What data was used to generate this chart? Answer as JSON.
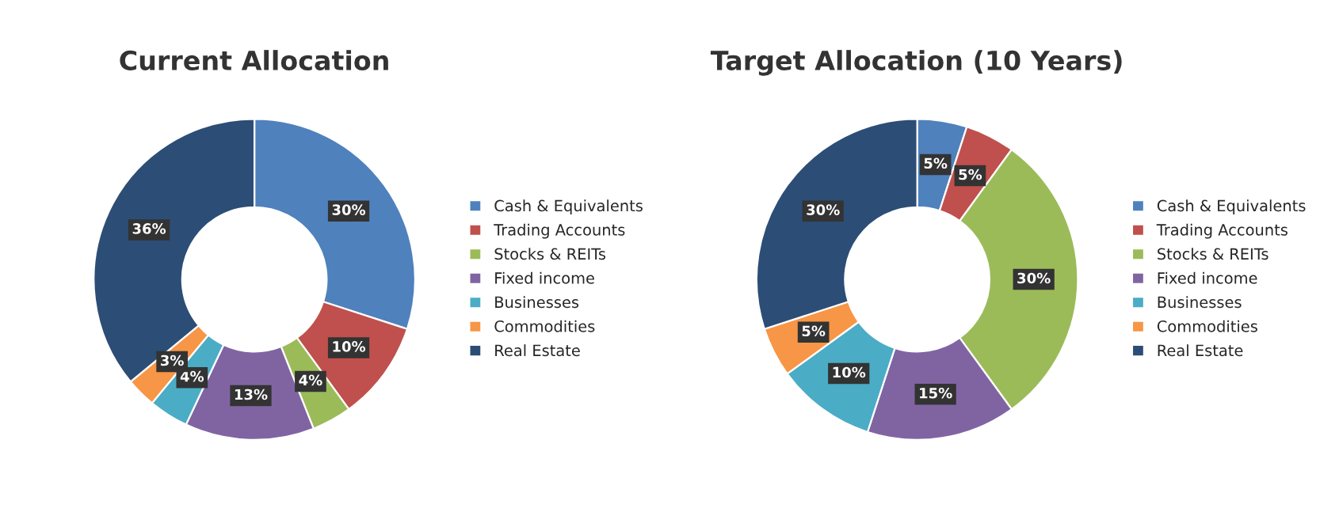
{
  "chart_data": [
    {
      "type": "donut",
      "title": "Current Allocation",
      "categories": [
        "Cash & Equivalents",
        "Trading Accounts",
        "Stocks & REITs",
        "Fixed income",
        "Businesses",
        "Commodities",
        "Real Estate"
      ],
      "values": [
        30,
        10,
        4,
        13,
        4,
        3,
        36
      ],
      "colors": [
        "#4f81bd",
        "#c0504d",
        "#9bbb59",
        "#8064a2",
        "#4bacc6",
        "#f79646",
        "#2c4d75"
      ],
      "value_labels": [
        "30%",
        "10%",
        "4%",
        "13%",
        "4%",
        "3%",
        "36%"
      ],
      "legend": "right"
    },
    {
      "type": "donut",
      "title": "Target Allocation (10 Years)",
      "categories": [
        "Cash & Equivalents",
        "Trading Accounts",
        "Stocks & REITs",
        "Fixed income",
        "Businesses",
        "Commodities",
        "Real Estate"
      ],
      "values": [
        5,
        5,
        30,
        15,
        10,
        5,
        30
      ],
      "colors": [
        "#4f81bd",
        "#c0504d",
        "#9bbb59",
        "#8064a2",
        "#4bacc6",
        "#f79646",
        "#2c4d75"
      ],
      "value_labels": [
        "5%",
        "5%",
        "30%",
        "15%",
        "10%",
        "5%",
        "30%"
      ],
      "legend": "right"
    }
  ]
}
